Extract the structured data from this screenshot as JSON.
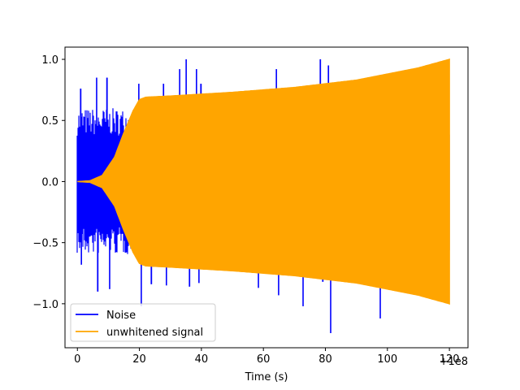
{
  "chart_data": {
    "type": "line",
    "title": "",
    "xlabel": "Time (s)",
    "ylabel": "",
    "x_offset_label": "+1e8",
    "xlim": [
      -4,
      126
    ],
    "ylim": [
      -1.36,
      1.1
    ],
    "xticks": [
      0,
      20,
      40,
      60,
      80,
      100,
      120
    ],
    "xtick_labels": [
      "0",
      "20",
      "40",
      "60",
      "80",
      "100",
      "120"
    ],
    "yticks": [
      -1.0,
      -0.5,
      0.0,
      0.5,
      1.0
    ],
    "ytick_labels": [
      "−1.0",
      "−0.5",
      "0.0",
      "0.5",
      "1.0"
    ],
    "grid": false,
    "legend_position": "lower-left",
    "series": [
      {
        "name": "Noise",
        "color": "#0000ff",
        "style": "noise",
        "x_range": [
          0,
          120
        ],
        "typical_amplitude": 0.5,
        "spikes": [
          {
            "x": 1.1,
            "y": 0.76
          },
          {
            "x": 1.3,
            "y": -0.68
          },
          {
            "x": 6.2,
            "y": 0.85
          },
          {
            "x": 6.6,
            "y": -0.9
          },
          {
            "x": 9.5,
            "y": 0.85
          },
          {
            "x": 10.4,
            "y": -0.88
          },
          {
            "x": 19.8,
            "y": 0.8
          },
          {
            "x": 20.6,
            "y": -1.02
          },
          {
            "x": 23.9,
            "y": -0.84
          },
          {
            "x": 27.8,
            "y": 0.8
          },
          {
            "x": 28.7,
            "y": -0.85
          },
          {
            "x": 33.0,
            "y": 0.92
          },
          {
            "x": 35.1,
            "y": 1.0
          },
          {
            "x": 36.2,
            "y": -0.86
          },
          {
            "x": 38.4,
            "y": 0.92
          },
          {
            "x": 39.2,
            "y": -0.83
          },
          {
            "x": 39.9,
            "y": 0.8
          },
          {
            "x": 58.4,
            "y": -0.87
          },
          {
            "x": 64.2,
            "y": 0.92
          },
          {
            "x": 64.9,
            "y": -0.93
          },
          {
            "x": 72.8,
            "y": -1.02
          },
          {
            "x": 78.4,
            "y": 1.0
          },
          {
            "x": 79.2,
            "y": -0.82
          },
          {
            "x": 81.0,
            "y": 0.95
          },
          {
            "x": 81.7,
            "y": -1.24
          },
          {
            "x": 97.7,
            "y": -1.12
          }
        ]
      },
      {
        "name": "unwhitened signal",
        "color": "#ffa500",
        "style": "envelope",
        "envelope": [
          {
            "x": 0,
            "y": 0.0
          },
          {
            "x": 4,
            "y": 0.006
          },
          {
            "x": 8,
            "y": 0.05
          },
          {
            "x": 12,
            "y": 0.2
          },
          {
            "x": 15,
            "y": 0.4
          },
          {
            "x": 18,
            "y": 0.58
          },
          {
            "x": 20,
            "y": 0.67
          },
          {
            "x": 22,
            "y": 0.69
          },
          {
            "x": 30,
            "y": 0.7
          },
          {
            "x": 50,
            "y": 0.73
          },
          {
            "x": 70,
            "y": 0.77
          },
          {
            "x": 80,
            "y": 0.8
          },
          {
            "x": 90,
            "y": 0.83
          },
          {
            "x": 100,
            "y": 0.88
          },
          {
            "x": 110,
            "y": 0.93
          },
          {
            "x": 120,
            "y": 1.0
          }
        ]
      }
    ]
  }
}
